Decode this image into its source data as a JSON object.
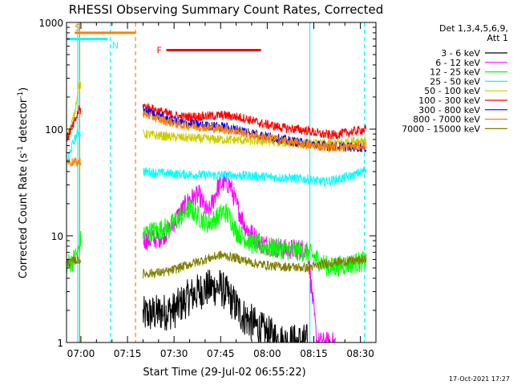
{
  "chart_data": {
    "type": "line",
    "title": "RHESSI Observing Summary Count Rates, Corrected",
    "xlabel": "Start Time (29-Jul-02 06:55:22)",
    "ylabel_main": "Corrected Count Rate (s",
    "ylabel_sup1": "-1",
    "ylabel_mid": " detector",
    "ylabel_sup2": "-1",
    "ylabel_end": ")",
    "yscale": "log",
    "ylim": [
      1,
      1000
    ],
    "xlim_minutes": [
      55.37,
      155.0
    ],
    "x_ticks": [
      {
        "label": "07:00",
        "minute": 60
      },
      {
        "label": "07:15",
        "minute": 75
      },
      {
        "label": "07:30",
        "minute": 90
      },
      {
        "label": "07:45",
        "minute": 105
      },
      {
        "label": "08:00",
        "minute": 120
      },
      {
        "label": "08:15",
        "minute": 135
      },
      {
        "label": "08:30",
        "minute": 150
      }
    ],
    "y_ticks": [
      {
        "label": "1",
        "value": 1
      },
      {
        "label": "10",
        "value": 10
      },
      {
        "label": "100",
        "value": 100
      },
      {
        "label": "1000",
        "value": 1000
      }
    ],
    "legend": {
      "position": "top-right",
      "header1": "Det 1,3,4,5,6,9,",
      "header2": "Att 1",
      "entries": [
        {
          "label": "3 - 6 keV",
          "color": "#000000"
        },
        {
          "label": "6 - 12 keV",
          "color": "#ff00ff"
        },
        {
          "label": "12 - 25 keV",
          "color": "#00ff00"
        },
        {
          "label": "25 - 50 keV",
          "color": "#00ffff"
        },
        {
          "label": "50 - 100 keV",
          "color": "#cccc00"
        },
        {
          "label": "100 - 300 keV",
          "color": "#ff0000"
        },
        {
          "label": "300 - 800 keV",
          "color": "#0000ff"
        },
        {
          "label": "800 - 7000 keV",
          "color": "#ff8000"
        },
        {
          "label": "7000 - 15000 keV",
          "color": "#808000"
        }
      ]
    },
    "annotations": [
      {
        "label": "S",
        "color": "#ff8000",
        "start": 58.0,
        "end": 77.5,
        "level": 800
      },
      {
        "label": "N",
        "color": "#00ffff",
        "start": 55.4,
        "end": 68.6,
        "level": 700
      },
      {
        "label": "F",
        "color": "#ff0000",
        "start": 87.5,
        "end": 118.0,
        "level": 550
      }
    ],
    "event_lines": [
      {
        "minute": 59.0,
        "color": "#00ffff",
        "style": "solid"
      },
      {
        "minute": 59.6,
        "color": "#ff8000",
        "style": "solid"
      },
      {
        "minute": 69.5,
        "color": "#00ffff",
        "style": "dashed"
      },
      {
        "minute": 77.6,
        "color": "#ff8000",
        "style": "dashed"
      },
      {
        "minute": 133.7,
        "color": "#00ffff",
        "style": "solid"
      },
      {
        "minute": 151.3,
        "color": "#00ffff",
        "style": "dashed"
      }
    ],
    "series": [
      {
        "name": "3 - 6 keV",
        "color": "#000000",
        "gap": [
          60,
          80
        ],
        "points": [
          [
            80,
            1.8
          ],
          [
            90,
            2.0
          ],
          [
            95,
            2.7
          ],
          [
            100,
            3.2
          ],
          [
            105,
            3.3
          ],
          [
            108,
            2.6
          ],
          [
            112,
            1.8
          ],
          [
            118,
            1.3
          ],
          [
            125,
            1.0
          ],
          [
            133,
            1.0
          ]
        ]
      },
      {
        "name": "6 - 12 keV",
        "color": "#ff00ff",
        "gap": [
          60,
          80
        ],
        "points": [
          [
            80,
            9
          ],
          [
            85,
            9.5
          ],
          [
            88,
            11
          ],
          [
            91,
            15
          ],
          [
            95,
            22
          ],
          [
            98,
            24
          ],
          [
            101,
            16
          ],
          [
            104,
            28
          ],
          [
            106,
            32
          ],
          [
            108,
            30
          ],
          [
            110,
            20
          ],
          [
            113,
            12
          ],
          [
            118,
            8.5
          ],
          [
            125,
            7.5
          ],
          [
            133,
            7.5
          ],
          [
            136,
            1
          ],
          [
            142,
            1
          ]
        ]
      },
      {
        "name": "12 - 25 keV",
        "color": "#00ff00",
        "gap": [
          60,
          80
        ],
        "points": [
          [
            55.4,
            5.5
          ],
          [
            57,
            5.6
          ],
          [
            59,
            7
          ],
          [
            59.6,
            9
          ],
          [
            80,
            10.5
          ],
          [
            83,
            11
          ],
          [
            88,
            12
          ],
          [
            91,
            14
          ],
          [
            95,
            18
          ],
          [
            98,
            15
          ],
          [
            101,
            13
          ],
          [
            104,
            15
          ],
          [
            106,
            17
          ],
          [
            108,
            15
          ],
          [
            110,
            11
          ],
          [
            115,
            8.5
          ],
          [
            120,
            7.8
          ],
          [
            125,
            7.5
          ],
          [
            133,
            7.0
          ],
          [
            140,
            5.0
          ],
          [
            147,
            5.5
          ],
          [
            152,
            5.8
          ]
        ]
      },
      {
        "name": "25 - 50 keV",
        "color": "#00ffff",
        "gap": [
          60,
          80
        ],
        "points": [
          [
            55.4,
            45
          ],
          [
            56,
            55
          ],
          [
            57,
            68
          ],
          [
            58,
            80
          ],
          [
            59.2,
            95
          ],
          [
            80,
            40
          ],
          [
            90,
            38
          ],
          [
            100,
            37
          ],
          [
            110,
            37
          ],
          [
            118,
            36
          ],
          [
            125,
            35
          ],
          [
            133,
            34
          ],
          [
            138,
            32
          ],
          [
            143,
            34
          ],
          [
            148,
            37
          ],
          [
            152,
            42
          ]
        ]
      },
      {
        "name": "50 - 100 keV",
        "color": "#cccc00",
        "gap": [
          60,
          80
        ],
        "points": [
          [
            55.4,
            80
          ],
          [
            56.5,
            100
          ],
          [
            58,
            140
          ],
          [
            59.3,
            270
          ],
          [
            80,
            90
          ],
          [
            90,
            84
          ],
          [
            100,
            81
          ],
          [
            110,
            79
          ],
          [
            118,
            77
          ],
          [
            125,
            75
          ],
          [
            133,
            73
          ],
          [
            140,
            73
          ],
          [
            146,
            76
          ],
          [
            152,
            80
          ]
        ]
      },
      {
        "name": "100 - 300 keV",
        "color": "#ff0000",
        "gap": [
          60,
          80
        ],
        "points": [
          [
            55.4,
            80
          ],
          [
            56.5,
            95
          ],
          [
            58,
            115
          ],
          [
            59.3,
            150
          ],
          [
            80,
            165
          ],
          [
            86,
            145
          ],
          [
            92,
            130
          ],
          [
            100,
            132
          ],
          [
            106,
            135
          ],
          [
            112,
            128
          ],
          [
            118,
            113
          ],
          [
            125,
            103
          ],
          [
            133,
            97
          ],
          [
            137,
            90
          ],
          [
            141,
            88
          ],
          [
            146,
            93
          ],
          [
            152,
            100
          ]
        ]
      },
      {
        "name": "300 - 800 keV",
        "color": "#0000ff",
        "gap": [
          60,
          80
        ],
        "points": [
          [
            80,
            150
          ],
          [
            86,
            130
          ],
          [
            92,
            115
          ],
          [
            100,
            108
          ],
          [
            106,
            105
          ],
          [
            112,
            97
          ],
          [
            118,
            88
          ],
          [
            125,
            80
          ],
          [
            133,
            73
          ],
          [
            140,
            69
          ],
          [
            146,
            68
          ],
          [
            152,
            67
          ]
        ]
      },
      {
        "name": "800 - 7000 keV",
        "color": "#ff8000",
        "gap": [
          60,
          80
        ],
        "points": [
          [
            55.4,
            50
          ],
          [
            57,
            49
          ],
          [
            59,
            49
          ],
          [
            59.6,
            50
          ],
          [
            80,
            140
          ],
          [
            86,
            122
          ],
          [
            92,
            110
          ],
          [
            100,
            104
          ],
          [
            106,
            100
          ],
          [
            112,
            93
          ],
          [
            118,
            85
          ],
          [
            125,
            78
          ],
          [
            133,
            71
          ],
          [
            140,
            68
          ],
          [
            146,
            68
          ],
          [
            152,
            70
          ]
        ]
      },
      {
        "name": "7000 - 15000 keV",
        "color": "#808000",
        "gap": [
          60,
          80
        ],
        "points": [
          [
            55.4,
            5.5
          ],
          [
            57,
            5.7
          ],
          [
            59,
            6.0
          ],
          [
            80,
            4.4
          ],
          [
            88,
            4.6
          ],
          [
            94,
            5.3
          ],
          [
            100,
            6.0
          ],
          [
            105,
            6.6
          ],
          [
            110,
            6.2
          ],
          [
            116,
            5.5
          ],
          [
            122,
            5.2
          ],
          [
            128,
            5.1
          ],
          [
            133,
            5.0
          ],
          [
            140,
            5.6
          ],
          [
            147,
            5.8
          ],
          [
            152,
            6.0
          ]
        ]
      }
    ],
    "footer_date": "17-Oct-2021 17:27"
  }
}
